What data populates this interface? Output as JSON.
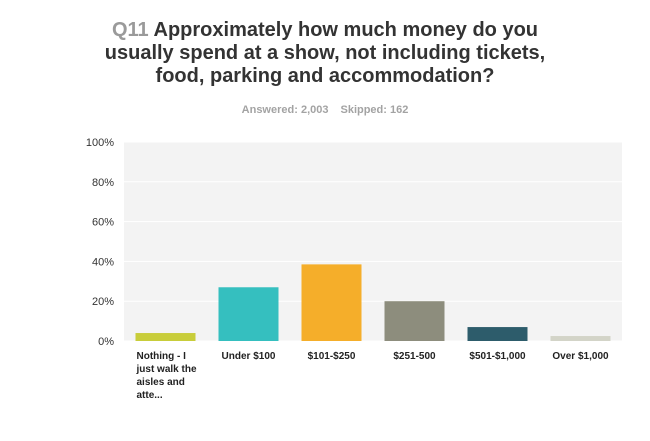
{
  "question": {
    "number": "Q11",
    "text": "Approximately how much money do you usually spend at a show, not including tickets, food, parking and accommodation?"
  },
  "stats": {
    "answered": "Answered: 2,003",
    "skipped": "Skipped: 162"
  },
  "chart_data": {
    "type": "bar",
    "categories": [
      "Nothing - I just walk the aisles and atte...",
      "Under $100",
      "$101-$250",
      "$251-500",
      "$501-$1,000",
      "Over $1,000"
    ],
    "values": [
      4,
      27,
      38.5,
      20,
      7,
      2.5
    ],
    "colors": [
      "#c8cd3a",
      "#35bfbf",
      "#f5ae2a",
      "#8d8d7d",
      "#2d5c6b",
      "#d3d4c8"
    ],
    "yticks": [
      "0%",
      "20%",
      "40%",
      "60%",
      "80%",
      "100%"
    ],
    "ylim": [
      0,
      100
    ],
    "grid": true,
    "plot_background": "#f3f3f3"
  }
}
